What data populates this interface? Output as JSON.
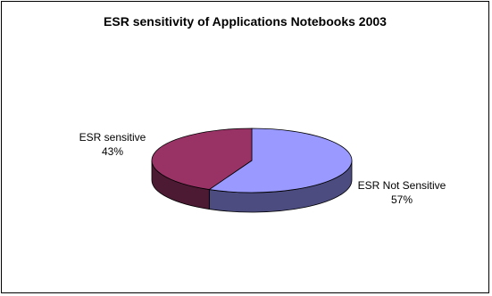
{
  "chart_data": {
    "type": "pie",
    "title": "ESR sensitivity of Applications Notebooks 2003",
    "slices": [
      {
        "label": "ESR Not Sensitive",
        "value": 57,
        "value_label": "57%",
        "color": "#9999ff",
        "side_color": "#4c4c80"
      },
      {
        "label": "ESR sensitive",
        "value": 43,
        "value_label": "43%",
        "color": "#993366",
        "side_color": "#4d1a33"
      }
    ],
    "style": "3d-pie",
    "legend": "none",
    "data_labels": "outside"
  }
}
